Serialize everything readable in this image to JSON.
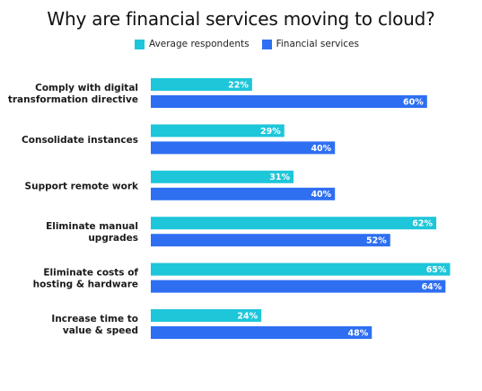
{
  "chart_data": {
    "type": "bar",
    "orientation": "horizontal",
    "title": "Why are financial services moving to cloud?",
    "categories": [
      [
        "Comply with digital",
        "transformation directive"
      ],
      [
        "Consolidate instances"
      ],
      [
        "Support remote work"
      ],
      [
        "Eliminate manual",
        "upgrades"
      ],
      [
        "Eliminate costs of",
        "hosting & hardware"
      ],
      [
        "Increase time to",
        "value & speed"
      ]
    ],
    "series": [
      {
        "name": "Average respondents",
        "color": "#1ec6d9",
        "values": [
          22,
          29,
          31,
          62,
          65,
          24
        ],
        "labels": [
          "22%",
          "29%",
          "31%",
          "62%",
          "65%",
          "24%"
        ]
      },
      {
        "name": "Financial services",
        "color": "#2e6ff2",
        "values": [
          60,
          40,
          40,
          52,
          64,
          48
        ],
        "labels": [
          "60%",
          "40%",
          "40%",
          "52%",
          "64%",
          "48%"
        ]
      }
    ],
    "xlim": [
      0,
      100
    ],
    "legend_position": "top",
    "grid": false,
    "xlabel": "",
    "ylabel": ""
  }
}
